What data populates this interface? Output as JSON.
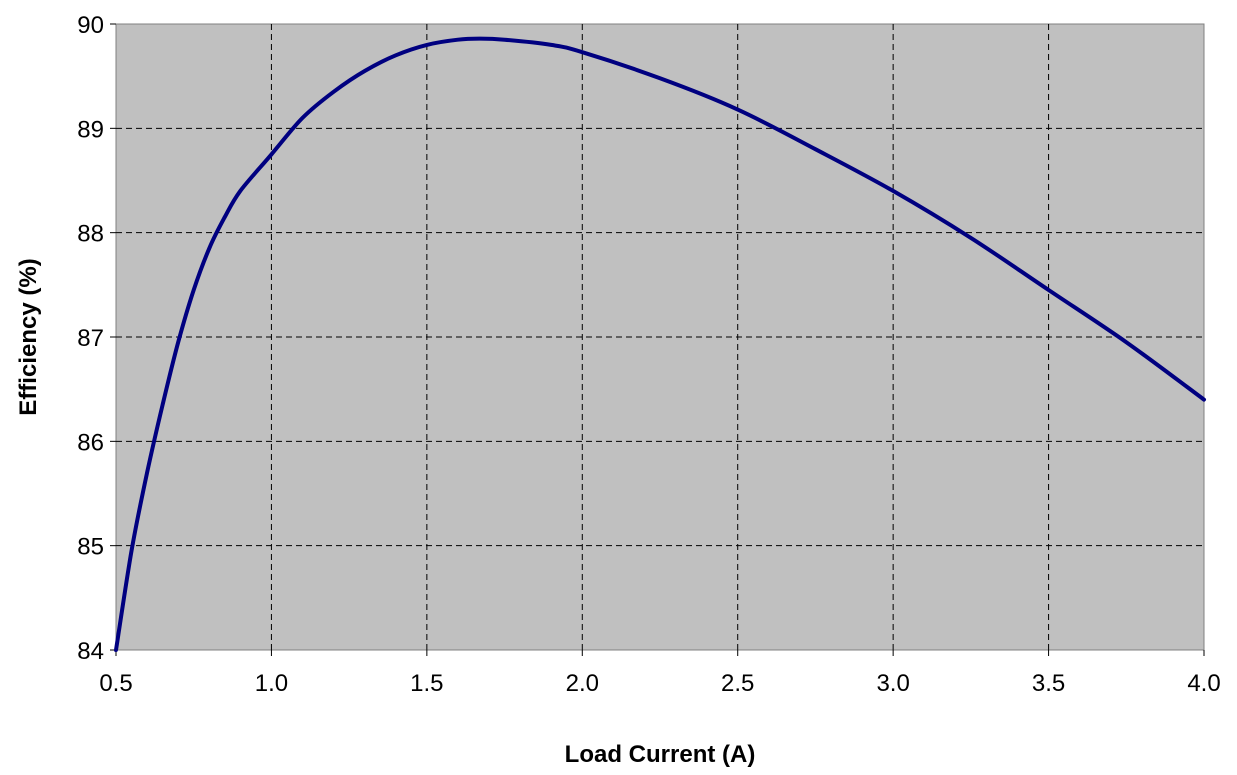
{
  "chart_data": {
    "type": "line",
    "title": "",
    "xlabel": "Load Current (A)",
    "ylabel": "Efficiency  (%)",
    "xlim": [
      0.5,
      4.0
    ],
    "ylim": [
      84,
      90
    ],
    "x_ticks": [
      "0.5",
      "1.0",
      "1.5",
      "2.0",
      "2.5",
      "3.0",
      "3.5",
      "4.0"
    ],
    "y_ticks": [
      "84",
      "85",
      "86",
      "87",
      "88",
      "89",
      "90"
    ],
    "grid": true,
    "legend": "none",
    "colors": {
      "plot_background": "#c0c0c0",
      "line": "#000080",
      "grid": "#000000"
    },
    "series": [
      {
        "x": [
          0.5,
          0.55,
          0.6,
          0.65,
          0.7,
          0.75,
          0.8,
          0.85,
          0.9,
          1.0,
          1.1,
          1.2,
          1.3,
          1.4,
          1.5,
          1.6,
          1.67,
          1.75,
          1.9,
          2.0,
          2.25,
          2.5,
          2.75,
          3.0,
          3.25,
          3.5,
          3.75,
          4.0
        ],
        "y": [
          84.0,
          84.95,
          85.7,
          86.35,
          86.95,
          87.45,
          87.85,
          88.15,
          88.4,
          88.75,
          89.1,
          89.35,
          89.55,
          89.7,
          89.8,
          89.85,
          89.86,
          89.85,
          89.8,
          89.73,
          89.48,
          89.18,
          88.8,
          88.4,
          87.95,
          87.45,
          86.95,
          86.4
        ]
      }
    ]
  }
}
